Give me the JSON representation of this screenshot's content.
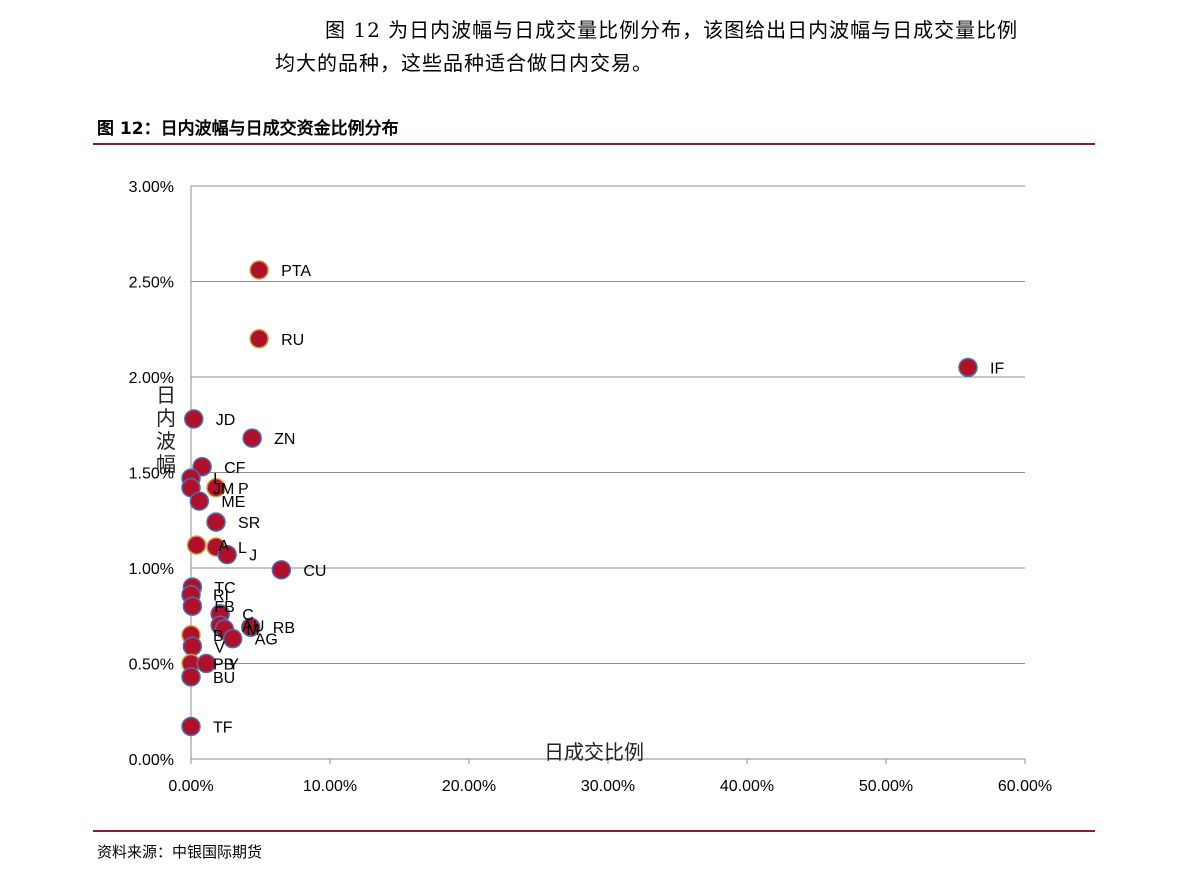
{
  "intro": {
    "line1": "图 12 为日内波幅与日成交量比例分布，该图给出日内波幅与日成交量比例",
    "line2": "均大的品种，这些品种适合做日内交易。"
  },
  "figure_title": "图 12：日内波幅与日成交资金比例分布",
  "source": "资料来源：中银国际期货",
  "chart_data": {
    "type": "scatter",
    "xlabel": "日成交比例",
    "ylabel": "日内波幅",
    "xlim": [
      0,
      0.6
    ],
    "ylim": [
      0,
      0.03
    ],
    "x_ticks": [
      "0.00%",
      "10.00%",
      "20.00%",
      "30.00%",
      "40.00%",
      "50.00%",
      "60.00%"
    ],
    "y_ticks": [
      "0.00%",
      "0.50%",
      "1.00%",
      "1.50%",
      "2.00%",
      "2.50%",
      "3.00%"
    ],
    "grid": "horizontal",
    "marker_color": "#b0102a",
    "marker_edge_colors": [
      "#4a6fb5",
      "#c8a040"
    ],
    "points": [
      {
        "label": "PTA",
        "x": 0.049,
        "y": 0.0256,
        "edge": 1
      },
      {
        "label": "RU",
        "x": 0.049,
        "y": 0.022,
        "edge": 1
      },
      {
        "label": "IF",
        "x": 0.559,
        "y": 0.0205,
        "edge": 0
      },
      {
        "label": "JD",
        "x": 0.002,
        "y": 0.0178,
        "edge": 0
      },
      {
        "label": "ZN",
        "x": 0.044,
        "y": 0.0168,
        "edge": 0
      },
      {
        "label": "CF",
        "x": 0.008,
        "y": 0.0153,
        "edge": 0
      },
      {
        "label": "I",
        "x": 0.0,
        "y": 0.0147,
        "edge": 0
      },
      {
        "label": "JM",
        "x": 0.0,
        "y": 0.0142,
        "edge": 0
      },
      {
        "label": "P",
        "x": 0.018,
        "y": 0.0142,
        "edge": 1
      },
      {
        "label": "ME",
        "x": 0.006,
        "y": 0.0135,
        "edge": 0
      },
      {
        "label": "SR",
        "x": 0.018,
        "y": 0.0124,
        "edge": 0
      },
      {
        "label": "A",
        "x": 0.004,
        "y": 0.0112,
        "edge": 1
      },
      {
        "label": "L",
        "x": 0.018,
        "y": 0.0111,
        "edge": 1
      },
      {
        "label": "J",
        "x": 0.026,
        "y": 0.0107,
        "edge": 0
      },
      {
        "label": "CU",
        "x": 0.065,
        "y": 0.0099,
        "edge": 0
      },
      {
        "label": "TC",
        "x": 0.001,
        "y": 0.009,
        "edge": 0
      },
      {
        "label": "RI",
        "x": 0.0,
        "y": 0.0086,
        "edge": 0
      },
      {
        "label": "FB",
        "x": 0.001,
        "y": 0.008,
        "edge": 0
      },
      {
        "label": "C",
        "x": 0.021,
        "y": 0.0076,
        "edge": 0
      },
      {
        "label": "AU",
        "x": 0.021,
        "y": 0.007,
        "edge": 0
      },
      {
        "label": "M",
        "x": 0.024,
        "y": 0.0068,
        "edge": 0
      },
      {
        "label": "RB",
        "x": 0.043,
        "y": 0.0069,
        "edge": 0
      },
      {
        "label": "AG",
        "x": 0.03,
        "y": 0.0063,
        "edge": 0
      },
      {
        "label": "B",
        "x": 0.0,
        "y": 0.0065,
        "edge": 1
      },
      {
        "label": "V",
        "x": 0.001,
        "y": 0.0059,
        "edge": 0
      },
      {
        "label": "PB",
        "x": 0.0,
        "y": 0.005,
        "edge": 1
      },
      {
        "label": "Y",
        "x": 0.011,
        "y": 0.005,
        "edge": 0
      },
      {
        "label": "BU",
        "x": 0.0,
        "y": 0.0043,
        "edge": 0
      },
      {
        "label": "TF",
        "x": 0.0,
        "y": 0.0017,
        "edge": 0
      }
    ]
  }
}
